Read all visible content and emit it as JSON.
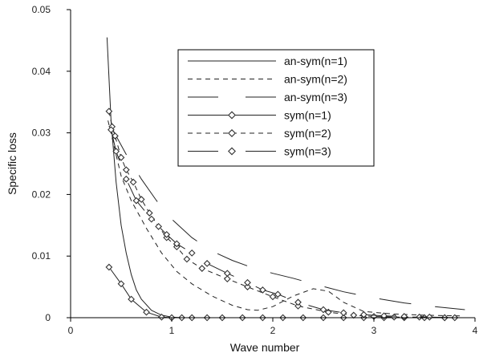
{
  "chart_data": {
    "type": "line",
    "xlabel": "Wave number",
    "ylabel": "Specific loss",
    "xlim": [
      0,
      4
    ],
    "ylim": [
      0,
      0.05
    ],
    "xticks": [
      "0",
      "1",
      "2",
      "3",
      "4"
    ],
    "yticks": [
      "0",
      "0.01",
      "0.02",
      "0.03",
      "0.04",
      "0.05"
    ],
    "grid": false,
    "legend_position": "top-right",
    "series": [
      {
        "name": "an-sym(n=1)",
        "style": "solid",
        "marker": "none",
        "x": [
          0.36,
          0.4,
          0.45,
          0.5,
          0.55,
          0.6,
          0.65,
          0.7,
          0.8,
          0.9,
          1.0,
          1.1,
          1.2
        ],
        "y": [
          0.0455,
          0.032,
          0.022,
          0.015,
          0.0105,
          0.007,
          0.0045,
          0.003,
          0.0012,
          0.0004,
          0.0001,
          0.0,
          0.0
        ]
      },
      {
        "name": "an-sym(n=2)",
        "style": "dashed",
        "marker": "none",
        "x": [
          0.37,
          0.5,
          0.6,
          0.75,
          0.9,
          1.05,
          1.2,
          1.4,
          1.6,
          1.75,
          1.85,
          2.0,
          2.2,
          2.4,
          2.55,
          2.7,
          2.9,
          3.2,
          3.5,
          3.85
        ],
        "y": [
          0.032,
          0.023,
          0.019,
          0.0145,
          0.0105,
          0.0075,
          0.0055,
          0.0035,
          0.002,
          0.0013,
          0.0012,
          0.0018,
          0.0035,
          0.0047,
          0.0043,
          0.0025,
          0.001,
          0.0006,
          0.0004,
          0.0003
        ]
      },
      {
        "name": "an-sym(n=3)",
        "style": "long-dash",
        "marker": "none",
        "x": [
          0.4,
          0.55,
          0.7,
          0.85,
          1.0,
          1.2,
          1.4,
          1.6,
          1.8,
          2.0,
          2.2,
          2.4,
          2.7,
          3.0,
          3.3,
          3.6,
          3.9
        ],
        "y": [
          0.031,
          0.0265,
          0.0225,
          0.019,
          0.016,
          0.013,
          0.0108,
          0.0093,
          0.0081,
          0.0072,
          0.0064,
          0.0055,
          0.0042,
          0.0032,
          0.0024,
          0.0018,
          0.0013
        ]
      },
      {
        "name": "sym(n=1)",
        "style": "solid",
        "marker": "diamond",
        "x": [
          0.38,
          0.5,
          0.6,
          0.75,
          0.9,
          1.0,
          1.1,
          1.2,
          1.35,
          1.5,
          1.7,
          1.9,
          2.1,
          2.3,
          2.5,
          2.7,
          2.9,
          3.1,
          3.3,
          3.5,
          3.7
        ],
        "y": [
          0.0082,
          0.0055,
          0.003,
          0.0009,
          0.0001,
          0.0,
          0.0,
          0.0,
          0.0,
          0.0,
          0.0,
          0.0,
          0.0,
          0.0,
          0.0,
          0.0,
          0.0,
          0.0,
          0.0,
          0.0,
          0.0
        ]
      },
      {
        "name": "sym(n=2)",
        "style": "dashed",
        "marker": "diamond",
        "x": [
          0.38,
          0.41,
          0.44,
          0.5,
          0.55,
          0.62,
          0.7,
          0.78,
          0.87,
          0.95,
          1.05,
          1.15,
          1.3,
          1.55,
          1.75,
          2.0,
          2.25,
          2.55,
          2.8,
          3.0,
          3.2,
          3.45,
          3.7
        ],
        "y": [
          0.0335,
          0.031,
          0.0295,
          0.026,
          0.024,
          0.022,
          0.0192,
          0.017,
          0.0148,
          0.013,
          0.0115,
          0.0095,
          0.008,
          0.0063,
          0.005,
          0.0034,
          0.0019,
          0.0009,
          0.0004,
          0.0002,
          0.0001,
          0.0001,
          0.0
        ]
      },
      {
        "name": "sym(n=3)",
        "style": "long-dash",
        "marker": "diamond",
        "x": [
          0.4,
          0.45,
          0.55,
          0.65,
          0.8,
          0.95,
          1.05,
          1.2,
          1.35,
          1.55,
          1.75,
          1.9,
          2.05,
          2.25,
          2.5,
          2.7,
          2.9,
          3.1,
          3.3,
          3.55,
          3.8
        ],
        "y": [
          0.0305,
          0.027,
          0.0225,
          0.019,
          0.016,
          0.0135,
          0.012,
          0.0105,
          0.0088,
          0.0072,
          0.0057,
          0.0045,
          0.0038,
          0.0025,
          0.0013,
          0.0008,
          0.0005,
          0.0003,
          0.0002,
          0.0001,
          0.0
        ]
      }
    ]
  }
}
